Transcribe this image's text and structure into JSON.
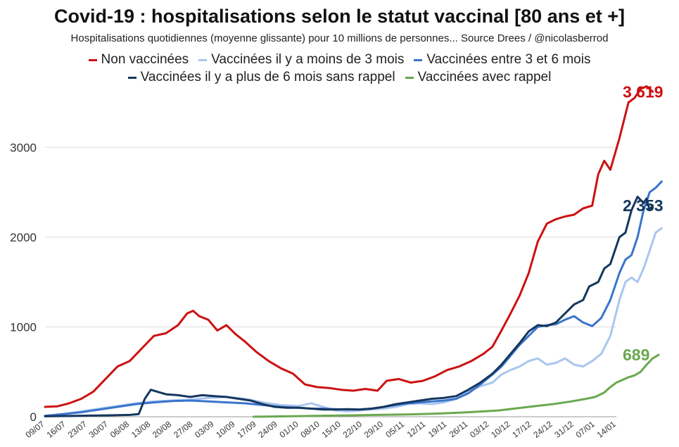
{
  "chart_data": {
    "type": "line",
    "title": "Covid-19 : hospitalisations selon le statut vaccinal [80 ans et +]",
    "subtitle": "Hospitalisations quotidiennes (moyenne glissante) pour 10 millions de personnes... Source Drees / @nicolasberrod",
    "xlabel": "",
    "ylabel": "",
    "ylim": [
      0,
      3700
    ],
    "yticks": [
      "0",
      "1000",
      "2000",
      "3000"
    ],
    "ytick_values": [
      0,
      1000,
      2000,
      3000
    ],
    "grid": true,
    "legend_position": "top",
    "x_day_range": [
      0,
      189
    ],
    "xticks": [
      "09/07",
      "16/07",
      "23/07",
      "30/07",
      "06/08",
      "13/08",
      "20/08",
      "27/08",
      "03/09",
      "10/09",
      "17/09",
      "24/09",
      "01/10",
      "08/10",
      "15/10",
      "22/10",
      "29/10",
      "05/11",
      "12/11",
      "19/11",
      "26/11",
      "03/12",
      "10/12",
      "17/12",
      "24/12",
      "31/12",
      "07/01",
      "14/01"
    ],
    "series": [
      {
        "name": "Non vaccinées",
        "color": "#cc1111",
        "end_label": "3 619",
        "points": [
          [
            0,
            110
          ],
          [
            4,
            115
          ],
          [
            8,
            150
          ],
          [
            12,
            200
          ],
          [
            16,
            280
          ],
          [
            20,
            420
          ],
          [
            24,
            560
          ],
          [
            28,
            620
          ],
          [
            32,
            760
          ],
          [
            36,
            900
          ],
          [
            40,
            930
          ],
          [
            44,
            1020
          ],
          [
            47,
            1150
          ],
          [
            49,
            1180
          ],
          [
            51,
            1120
          ],
          [
            54,
            1080
          ],
          [
            57,
            960
          ],
          [
            60,
            1020
          ],
          [
            63,
            920
          ],
          [
            66,
            840
          ],
          [
            70,
            720
          ],
          [
            74,
            620
          ],
          [
            78,
            540
          ],
          [
            82,
            480
          ],
          [
            86,
            360
          ],
          [
            90,
            330
          ],
          [
            94,
            320
          ],
          [
            98,
            300
          ],
          [
            102,
            290
          ],
          [
            106,
            310
          ],
          [
            110,
            290
          ],
          [
            113,
            400
          ],
          [
            117,
            420
          ],
          [
            121,
            380
          ],
          [
            125,
            400
          ],
          [
            129,
            450
          ],
          [
            133,
            520
          ],
          [
            137,
            560
          ],
          [
            141,
            620
          ],
          [
            145,
            700
          ],
          [
            148,
            780
          ],
          [
            151,
            960
          ],
          [
            154,
            1150
          ],
          [
            157,
            1350
          ],
          [
            160,
            1600
          ],
          [
            163,
            1950
          ],
          [
            166,
            2150
          ],
          [
            169,
            2200
          ],
          [
            172,
            2230
          ],
          [
            175,
            2250
          ],
          [
            178,
            2320
          ],
          [
            181,
            2350
          ],
          [
            183,
            2700
          ],
          [
            185,
            2850
          ],
          [
            187,
            2750
          ],
          [
            190,
            3100
          ],
          [
            193,
            3500
          ],
          [
            195,
            3550
          ],
          [
            197,
            3650
          ],
          [
            199,
            3680
          ],
          [
            201,
            3619
          ]
        ]
      },
      {
        "name": "Vaccinées il y a moins de 3 mois",
        "color": "#a9c6ef",
        "end_label": "",
        "points": [
          [
            0,
            10
          ],
          [
            6,
            30
          ],
          [
            12,
            60
          ],
          [
            18,
            90
          ],
          [
            24,
            120
          ],
          [
            30,
            150
          ],
          [
            36,
            170
          ],
          [
            42,
            180
          ],
          [
            48,
            190
          ],
          [
            54,
            210
          ],
          [
            60,
            220
          ],
          [
            66,
            200
          ],
          [
            72,
            160
          ],
          [
            78,
            130
          ],
          [
            84,
            120
          ],
          [
            88,
            150
          ],
          [
            92,
            110
          ],
          [
            96,
            70
          ],
          [
            100,
            60
          ],
          [
            104,
            70
          ],
          [
            108,
            80
          ],
          [
            112,
            90
          ],
          [
            116,
            110
          ],
          [
            120,
            140
          ],
          [
            124,
            150
          ],
          [
            128,
            140
          ],
          [
            132,
            160
          ],
          [
            136,
            200
          ],
          [
            140,
            280
          ],
          [
            144,
            340
          ],
          [
            148,
            380
          ],
          [
            151,
            470
          ],
          [
            154,
            520
          ],
          [
            157,
            560
          ],
          [
            160,
            620
          ],
          [
            163,
            650
          ],
          [
            166,
            580
          ],
          [
            169,
            600
          ],
          [
            172,
            650
          ],
          [
            175,
            580
          ],
          [
            178,
            560
          ],
          [
            181,
            620
          ],
          [
            184,
            700
          ],
          [
            187,
            900
          ],
          [
            190,
            1300
          ],
          [
            192,
            1500
          ],
          [
            194,
            1550
          ],
          [
            196,
            1500
          ],
          [
            198,
            1650
          ],
          [
            200,
            1850
          ],
          [
            202,
            2050
          ],
          [
            204,
            2100
          ]
        ]
      },
      {
        "name": "Vaccinées entre 3 et 6 mois",
        "color": "#3a74cc",
        "end_label": "",
        "points": [
          [
            0,
            10
          ],
          [
            6,
            30
          ],
          [
            12,
            50
          ],
          [
            18,
            80
          ],
          [
            24,
            110
          ],
          [
            30,
            140
          ],
          [
            36,
            160
          ],
          [
            42,
            175
          ],
          [
            48,
            180
          ],
          [
            54,
            170
          ],
          [
            60,
            160
          ],
          [
            66,
            150
          ],
          [
            72,
            130
          ],
          [
            78,
            110
          ],
          [
            84,
            100
          ],
          [
            88,
            90
          ],
          [
            92,
            90
          ],
          [
            96,
            85
          ],
          [
            100,
            80
          ],
          [
            104,
            80
          ],
          [
            108,
            90
          ],
          [
            112,
            110
          ],
          [
            116,
            130
          ],
          [
            120,
            150
          ],
          [
            124,
            160
          ],
          [
            128,
            170
          ],
          [
            132,
            180
          ],
          [
            136,
            200
          ],
          [
            140,
            260
          ],
          [
            144,
            360
          ],
          [
            148,
            470
          ],
          [
            151,
            560
          ],
          [
            154,
            680
          ],
          [
            157,
            800
          ],
          [
            160,
            900
          ],
          [
            163,
            1000
          ],
          [
            166,
            1020
          ],
          [
            169,
            1030
          ],
          [
            172,
            1080
          ],
          [
            175,
            1120
          ],
          [
            178,
            1050
          ],
          [
            181,
            1010
          ],
          [
            184,
            1100
          ],
          [
            187,
            1300
          ],
          [
            190,
            1600
          ],
          [
            192,
            1750
          ],
          [
            194,
            1800
          ],
          [
            196,
            2000
          ],
          [
            198,
            2300
          ],
          [
            200,
            2500
          ],
          [
            202,
            2550
          ],
          [
            204,
            2620
          ]
        ]
      },
      {
        "name": "Vaccinées il y a plus de 6 mois sans rappel",
        "color": "#15375e",
        "end_label": "2 353",
        "points": [
          [
            0,
            5
          ],
          [
            10,
            10
          ],
          [
            20,
            15
          ],
          [
            28,
            20
          ],
          [
            31,
            30
          ],
          [
            33,
            200
          ],
          [
            35,
            300
          ],
          [
            37,
            280
          ],
          [
            40,
            250
          ],
          [
            44,
            240
          ],
          [
            48,
            220
          ],
          [
            52,
            240
          ],
          [
            56,
            230
          ],
          [
            60,
            220
          ],
          [
            64,
            200
          ],
          [
            68,
            180
          ],
          [
            72,
            140
          ],
          [
            76,
            110
          ],
          [
            80,
            100
          ],
          [
            84,
            100
          ],
          [
            88,
            90
          ],
          [
            92,
            80
          ],
          [
            96,
            80
          ],
          [
            100,
            85
          ],
          [
            104,
            80
          ],
          [
            108,
            90
          ],
          [
            112,
            110
          ],
          [
            116,
            140
          ],
          [
            120,
            160
          ],
          [
            124,
            180
          ],
          [
            128,
            200
          ],
          [
            132,
            210
          ],
          [
            136,
            230
          ],
          [
            140,
            300
          ],
          [
            144,
            380
          ],
          [
            148,
            480
          ],
          [
            151,
            580
          ],
          [
            154,
            700
          ],
          [
            157,
            820
          ],
          [
            160,
            950
          ],
          [
            163,
            1020
          ],
          [
            166,
            1010
          ],
          [
            169,
            1050
          ],
          [
            172,
            1150
          ],
          [
            175,
            1250
          ],
          [
            178,
            1300
          ],
          [
            180,
            1450
          ],
          [
            183,
            1500
          ],
          [
            185,
            1650
          ],
          [
            187,
            1700
          ],
          [
            190,
            2000
          ],
          [
            192,
            2050
          ],
          [
            194,
            2300
          ],
          [
            196,
            2450
          ],
          [
            198,
            2380
          ],
          [
            199,
            2430
          ],
          [
            200,
            2300
          ],
          [
            201,
            2353
          ]
        ]
      },
      {
        "name": "Vaccinées avec rappel",
        "color": "#6aa84f",
        "end_label": "689",
        "points": [
          [
            69,
            0
          ],
          [
            80,
            5
          ],
          [
            90,
            10
          ],
          [
            100,
            15
          ],
          [
            110,
            20
          ],
          [
            120,
            25
          ],
          [
            130,
            35
          ],
          [
            140,
            50
          ],
          [
            150,
            70
          ],
          [
            160,
            110
          ],
          [
            168,
            140
          ],
          [
            174,
            170
          ],
          [
            179,
            200
          ],
          [
            182,
            220
          ],
          [
            185,
            270
          ],
          [
            187,
            330
          ],
          [
            189,
            380
          ],
          [
            191,
            410
          ],
          [
            193,
            440
          ],
          [
            195,
            460
          ],
          [
            197,
            500
          ],
          [
            199,
            580
          ],
          [
            201,
            650
          ],
          [
            203,
            689
          ]
        ]
      }
    ]
  }
}
